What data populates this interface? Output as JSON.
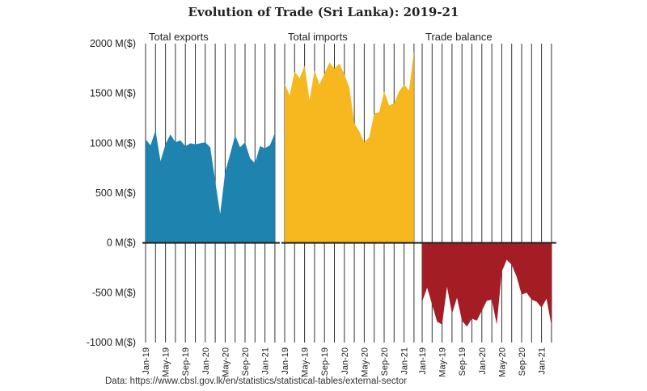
{
  "title": "Evolution of Trade (Sri Lanka): 2019-21",
  "source": "Data: https://www.cbsl.gov.lk/en/statistics/statistical-tables/external-sector",
  "chart_data": {
    "type": "area",
    "title": "Evolution of Trade (Sri Lanka): 2019-21",
    "ylim": [
      -1000,
      2000
    ],
    "yticks": [
      2000,
      1500,
      1000,
      500,
      0,
      -500,
      -1000
    ],
    "ytick_labels": [
      "2000 M($)",
      "1500 M($)",
      "1000 M($)",
      "500 M($)",
      "0 M($)",
      "-500 M($)",
      "-1000 M($)"
    ],
    "x": [
      "Jan-19",
      "Feb-19",
      "Mar-19",
      "Apr-19",
      "May-19",
      "Jun-19",
      "Jul-19",
      "Aug-19",
      "Sep-19",
      "Oct-19",
      "Nov-19",
      "Dec-19",
      "Jan-20",
      "Feb-20",
      "Mar-20",
      "Apr-20",
      "May-20",
      "Jun-20",
      "Jul-20",
      "Aug-20",
      "Sep-20",
      "Oct-20",
      "Nov-20",
      "Dec-20",
      "Jan-21",
      "Feb-21",
      "Mar-21"
    ],
    "xtick_labels": [
      "Jan-19",
      "May-19",
      "Sep-19",
      "Jan-20",
      "May-20",
      "Sep-20",
      "Jan-21"
    ],
    "grid": "vertical",
    "series": [
      {
        "name": "Total exports",
        "color": "#1f83b0",
        "values": [
          1040,
          980,
          1130,
          820,
          990,
          1090,
          1010,
          1030,
          970,
          1000,
          990,
          1000,
          1010,
          960,
          620,
          290,
          710,
          890,
          1080,
          960,
          1010,
          850,
          800,
          970,
          950,
          980,
          1100
        ]
      },
      {
        "name": "Total imports",
        "color": "#f6b81e",
        "values": [
          1600,
          1480,
          1720,
          1650,
          1780,
          1430,
          1730,
          1590,
          1700,
          1810,
          1750,
          1800,
          1690,
          1560,
          1200,
          1120,
          1010,
          1060,
          1300,
          1310,
          1520,
          1380,
          1400,
          1520,
          1590,
          1530,
          1930
        ]
      },
      {
        "name": "Trade balance",
        "color": "#a51d24",
        "values": [
          -590,
          -450,
          -620,
          -790,
          -820,
          -440,
          -710,
          -550,
          -780,
          -840,
          -760,
          -780,
          -680,
          -580,
          -570,
          -820,
          -290,
          -170,
          -220,
          -340,
          -520,
          -500,
          -570,
          -590,
          -650,
          -560,
          -830
        ]
      }
    ]
  }
}
